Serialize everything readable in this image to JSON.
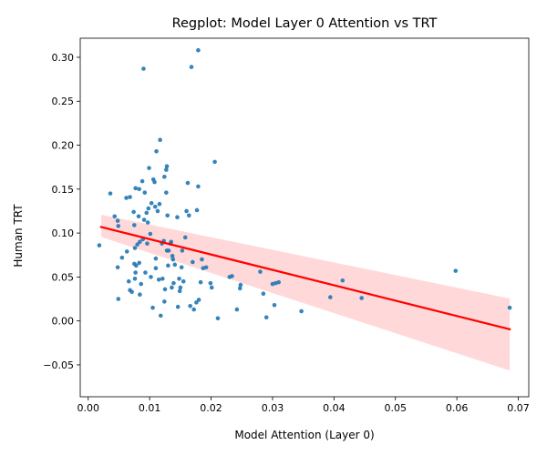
{
  "chart_data": {
    "type": "scatter",
    "title": "Regplot: Model Layer 0 Attention vs TRT",
    "xlabel": "Model Attention (Layer 0)",
    "ylabel": "Human TRT",
    "xlim": [
      -0.0013,
      0.0717
    ],
    "ylim": [
      -0.0863,
      0.3217
    ],
    "xticks": [
      0.0,
      0.01,
      0.02,
      0.03,
      0.04,
      0.05,
      0.06,
      0.07
    ],
    "xtick_labels": [
      "0.00",
      "0.01",
      "0.02",
      "0.03",
      "0.04",
      "0.05",
      "0.06",
      "0.07"
    ],
    "yticks": [
      -0.05,
      0.0,
      0.05,
      0.1,
      0.15,
      0.2,
      0.25,
      0.3
    ],
    "ytick_labels": [
      "−0.05",
      "0.00",
      "0.05",
      "0.10",
      "0.15",
      "0.20",
      "0.25",
      "0.30"
    ],
    "grid": false,
    "point_color": "#1f77b4",
    "line_color": "#ff0000",
    "ci_color": "#ff0000",
    "regression": {
      "x": [
        0.0021,
        0.0686
      ],
      "y": [
        0.1069,
        -0.0095
      ]
    },
    "ci_band": {
      "x": [
        0.0021,
        0.0686
      ],
      "upper": [
        0.121,
        0.0255
      ],
      "lower": [
        0.0955,
        -0.0565
      ]
    },
    "points": [
      [
        0.0018,
        0.086
      ],
      [
        0.0036,
        0.145
      ],
      [
        0.0043,
        0.119
      ],
      [
        0.0048,
        0.114
      ],
      [
        0.0049,
        0.108
      ],
      [
        0.0048,
        0.061
      ],
      [
        0.0049,
        0.025
      ],
      [
        0.0055,
        0.072
      ],
      [
        0.0062,
        0.14
      ],
      [
        0.0063,
        0.079
      ],
      [
        0.0068,
        0.141
      ],
      [
        0.0066,
        0.045
      ],
      [
        0.0068,
        0.035
      ],
      [
        0.0071,
        0.033
      ],
      [
        0.0074,
        0.124
      ],
      [
        0.0075,
        0.109
      ],
      [
        0.0077,
        0.151
      ],
      [
        0.0075,
        0.065
      ],
      [
        0.0076,
        0.083
      ],
      [
        0.0078,
        0.063
      ],
      [
        0.0077,
        0.055
      ],
      [
        0.0076,
        0.048
      ],
      [
        0.008,
        0.087
      ],
      [
        0.0082,
        0.119
      ],
      [
        0.0083,
        0.15
      ],
      [
        0.0084,
        0.09
      ],
      [
        0.0083,
        0.066
      ],
      [
        0.0086,
        0.042
      ],
      [
        0.0084,
        0.03
      ],
      [
        0.0088,
        0.159
      ],
      [
        0.0089,
        0.093
      ],
      [
        0.009,
        0.287
      ],
      [
        0.0092,
        0.146
      ],
      [
        0.0091,
        0.115
      ],
      [
        0.0093,
        0.055
      ],
      [
        0.0095,
        0.123
      ],
      [
        0.0097,
        0.112
      ],
      [
        0.0096,
        0.088
      ],
      [
        0.0099,
        0.174
      ],
      [
        0.0098,
        0.128
      ],
      [
        0.0101,
        0.099
      ],
      [
        0.0102,
        0.05
      ],
      [
        0.0103,
        0.134
      ],
      [
        0.0105,
        0.015
      ],
      [
        0.0106,
        0.161
      ],
      [
        0.0108,
        0.158
      ],
      [
        0.0109,
        0.13
      ],
      [
        0.011,
        0.071
      ],
      [
        0.011,
        0.06
      ],
      [
        0.0111,
        0.193
      ],
      [
        0.0113,
        0.125
      ],
      [
        0.0115,
        0.047
      ],
      [
        0.0117,
        0.206
      ],
      [
        0.0116,
        0.133
      ],
      [
        0.0118,
        0.006
      ],
      [
        0.012,
        0.088
      ],
      [
        0.0121,
        0.048
      ],
      [
        0.0123,
        0.091
      ],
      [
        0.0124,
        0.164
      ],
      [
        0.0125,
        0.036
      ],
      [
        0.0124,
        0.022
      ],
      [
        0.0127,
        0.172
      ],
      [
        0.0128,
        0.176
      ],
      [
        0.0127,
        0.146
      ],
      [
        0.0129,
        0.12
      ],
      [
        0.0128,
        0.08
      ],
      [
        0.013,
        0.063
      ],
      [
        0.0131,
        0.08
      ],
      [
        0.0134,
        0.088
      ],
      [
        0.0135,
        0.09
      ],
      [
        0.0136,
        0.038
      ],
      [
        0.0137,
        0.074
      ],
      [
        0.0138,
        0.07
      ],
      [
        0.0139,
        0.043
      ],
      [
        0.0141,
        0.064
      ],
      [
        0.0145,
        0.118
      ],
      [
        0.0146,
        0.016
      ],
      [
        0.0148,
        0.048
      ],
      [
        0.0149,
        0.034
      ],
      [
        0.015,
        0.038
      ],
      [
        0.0152,
        0.061
      ],
      [
        0.0153,
        0.08
      ],
      [
        0.0155,
        0.045
      ],
      [
        0.0158,
        0.095
      ],
      [
        0.016,
        0.125
      ],
      [
        0.0162,
        0.157
      ],
      [
        0.0164,
        0.12
      ],
      [
        0.0166,
        0.017
      ],
      [
        0.0168,
        0.289
      ],
      [
        0.017,
        0.067
      ],
      [
        0.0172,
        0.013
      ],
      [
        0.0176,
        0.021
      ],
      [
        0.0177,
        0.126
      ],
      [
        0.0179,
        0.153
      ],
      [
        0.0179,
        0.308
      ],
      [
        0.018,
        0.024
      ],
      [
        0.0183,
        0.044
      ],
      [
        0.0185,
        0.07
      ],
      [
        0.0187,
        0.06
      ],
      [
        0.0192,
        0.061
      ],
      [
        0.0199,
        0.043
      ],
      [
        0.0201,
        0.038
      ],
      [
        0.0206,
        0.181
      ],
      [
        0.0211,
        0.003
      ],
      [
        0.023,
        0.05
      ],
      [
        0.0234,
        0.051
      ],
      [
        0.0242,
        0.013
      ],
      [
        0.0247,
        0.037
      ],
      [
        0.0248,
        0.041
      ],
      [
        0.028,
        0.056
      ],
      [
        0.0285,
        0.031
      ],
      [
        0.029,
        0.004
      ],
      [
        0.03,
        0.042
      ],
      [
        0.0303,
        0.018
      ],
      [
        0.0305,
        0.043
      ],
      [
        0.031,
        0.044
      ],
      [
        0.0347,
        0.011
      ],
      [
        0.0394,
        0.027
      ],
      [
        0.0414,
        0.046
      ],
      [
        0.0445,
        0.026
      ],
      [
        0.0598,
        0.057
      ],
      [
        0.0686,
        0.015
      ]
    ]
  }
}
